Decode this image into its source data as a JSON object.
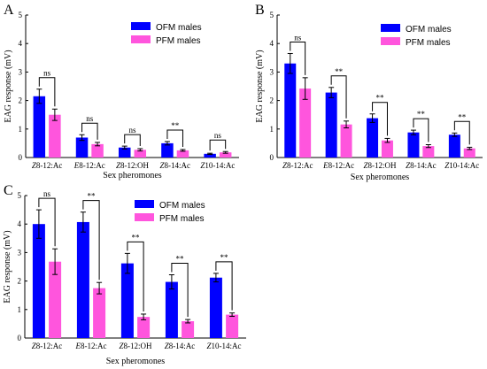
{
  "chart_data": [
    {
      "panel_label": "A",
      "type": "bar",
      "categories": [
        "Z8-12:Ac",
        "E8-12:Ac",
        "Z8-12:OH",
        "Z8-14:Ac",
        "Z10-14:Ac"
      ],
      "category_parts": [
        [
          "Z",
          "8-12:Ac"
        ],
        [
          "E",
          "8-12:Ac"
        ],
        [
          "Z",
          "8-12:OH"
        ],
        [
          "Z",
          "8-14:Ac"
        ],
        [
          "Z",
          "10-14:Ac"
        ]
      ],
      "series": [
        {
          "name": "OFM males",
          "color": "#0000ff",
          "values": [
            2.15,
            0.7,
            0.35,
            0.5,
            0.13
          ],
          "errors": [
            0.25,
            0.1,
            0.05,
            0.06,
            0.02
          ]
        },
        {
          "name": "PFM males",
          "color": "#ff55dd",
          "values": [
            1.5,
            0.47,
            0.27,
            0.25,
            0.18
          ],
          "errors": [
            0.2,
            0.06,
            0.04,
            0.03,
            0.03
          ]
        }
      ],
      "significance": [
        "ns",
        "ns",
        "ns",
        "**",
        "ns"
      ],
      "xlabel": "Sex pheromones",
      "ylabel": "EAG response (mV)",
      "ylim": [
        0,
        5
      ],
      "yticks": [
        0,
        1,
        2,
        3,
        4,
        5
      ],
      "legend": "top-right",
      "grid": false
    },
    {
      "panel_label": "B",
      "type": "bar",
      "categories": [
        "Z8-12:Ac",
        "E8-12:Ac",
        "Z8-12:OH",
        "Z8-14:Ac",
        "Z10-14:Ac"
      ],
      "category_parts": [
        [
          "Z",
          "8-12:Ac"
        ],
        [
          "E",
          "8-12:Ac"
        ],
        [
          "Z",
          "8-12:OH"
        ],
        [
          "Z",
          "8-14:Ac"
        ],
        [
          "Z",
          "10-14:Ac"
        ]
      ],
      "series": [
        {
          "name": "OFM males",
          "color": "#0000ff",
          "values": [
            3.3,
            2.28,
            1.38,
            0.88,
            0.8
          ],
          "errors": [
            0.35,
            0.18,
            0.15,
            0.08,
            0.06
          ]
        },
        {
          "name": "PFM males",
          "color": "#ff55dd",
          "values": [
            2.42,
            1.16,
            0.6,
            0.4,
            0.32
          ],
          "errors": [
            0.38,
            0.12,
            0.07,
            0.05,
            0.04
          ]
        }
      ],
      "significance": [
        "ns",
        "**",
        "**",
        "**",
        "**"
      ],
      "xlabel": "Sex pheromones",
      "ylabel": "EAG response (mV)",
      "ylim": [
        0,
        5
      ],
      "yticks": [
        0,
        1,
        2,
        3,
        4,
        5
      ],
      "legend": "top-right",
      "grid": false
    },
    {
      "panel_label": "C",
      "type": "bar",
      "categories": [
        "Z8-12:Ac",
        "E8-12:Ac",
        "Z8-12:OH",
        "Z8-14:Ac",
        "Z10-14:Ac"
      ],
      "category_parts": [
        [
          "Z",
          "8-12:Ac"
        ],
        [
          "E",
          "8-12:Ac"
        ],
        [
          "Z",
          "8-12:OH"
        ],
        [
          "Z",
          "8-14:Ac"
        ],
        [
          "Z",
          "10-14:Ac"
        ]
      ],
      "series": [
        {
          "name": "OFM males",
          "color": "#0000ff",
          "values": [
            4.0,
            4.07,
            2.62,
            1.97,
            2.12
          ],
          "errors": [
            0.5,
            0.35,
            0.35,
            0.25,
            0.15
          ]
        },
        {
          "name": "PFM males",
          "color": "#ff55dd",
          "values": [
            2.68,
            1.75,
            0.74,
            0.59,
            0.82
          ],
          "errors": [
            0.45,
            0.2,
            0.1,
            0.06,
            0.06
          ]
        }
      ],
      "significance": [
        "ns",
        "**",
        "**",
        "**",
        "**"
      ],
      "xlabel": "Sex pheromones",
      "ylabel": "EAG response (mV)",
      "ylim": [
        0,
        5
      ],
      "yticks": [
        0,
        1,
        2,
        3,
        4,
        5
      ],
      "legend": "top-right",
      "grid": false
    }
  ]
}
